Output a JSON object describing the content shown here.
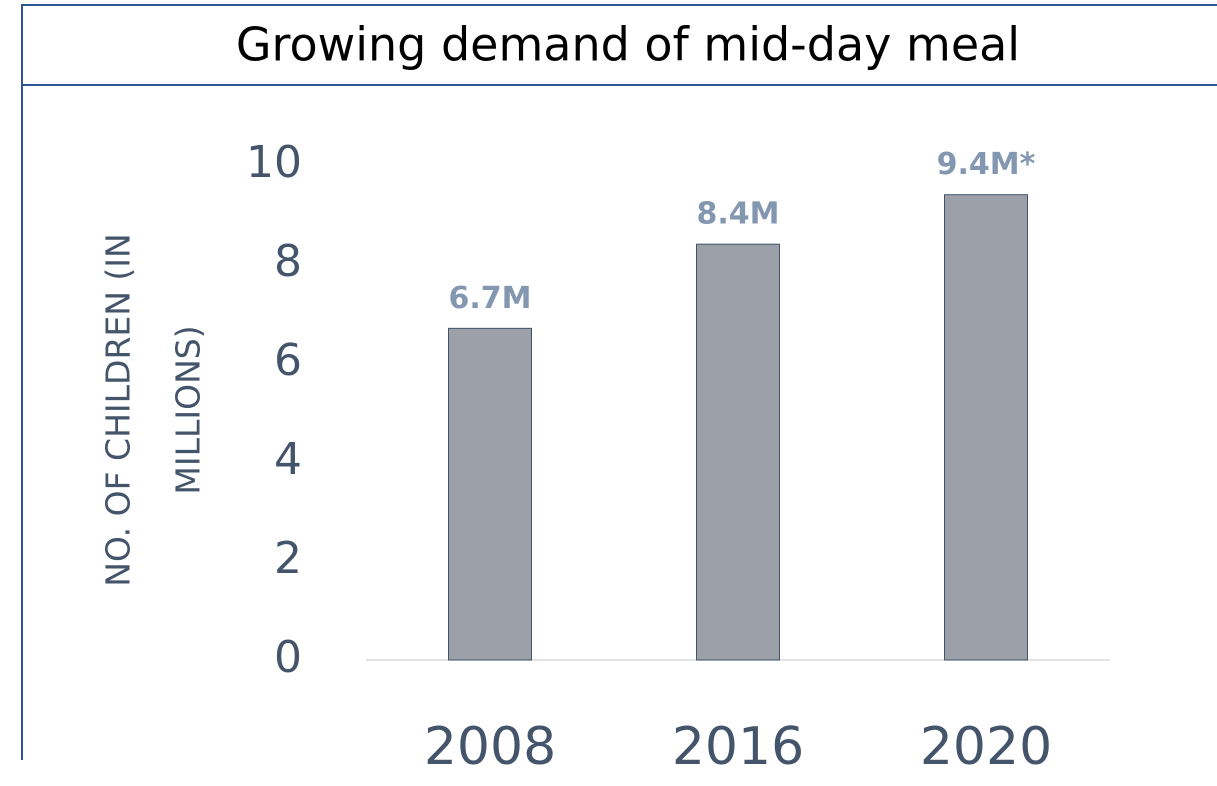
{
  "chart_data": {
    "type": "bar",
    "title": "Growing demand of mid-day meal",
    "y_label": [
      "NO. OF CHILDREN (IN",
      "MILLIONS)"
    ],
    "categories": [
      "2008",
      "2016",
      "2020"
    ],
    "values": [
      6.7,
      8.4,
      9.4
    ],
    "value_labels": [
      "6.7M",
      "8.4M",
      "9.4M*"
    ],
    "color": "#9ca0a8",
    "ylim": [
      0,
      10
    ],
    "yticks": [
      0,
      2,
      4,
      6,
      8,
      10
    ],
    "grid": false
  }
}
